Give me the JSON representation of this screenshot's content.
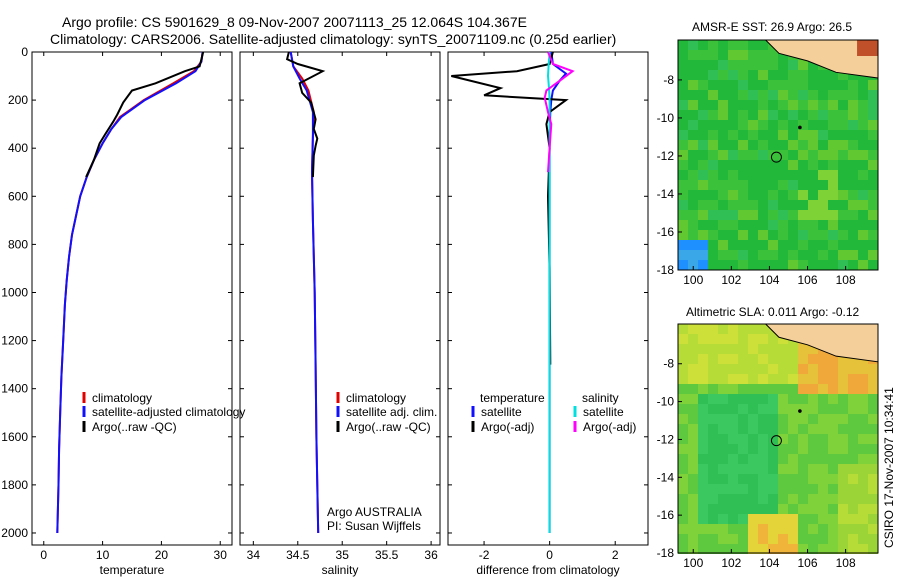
{
  "header": {
    "title_line1": "Argo profile: CS 5901629_8 09-Nov-2007 20071113_25 12.064S 104.367E",
    "title_line2": "Climatology: CARS2006. Satellite-adjusted climatology: synTS_20071109.nc (0.25d earlier)"
  },
  "colors": {
    "climatology": "#e00000",
    "satellite": "#1010ff",
    "argo": "#000000",
    "sat_salinity": "#00e0e0",
    "argo_adj_salinity": "#ff00ff"
  },
  "chart_data": [
    {
      "id": "temperature",
      "type": "line",
      "xlabel": "temperature",
      "xlim": [
        -2,
        32
      ],
      "ylim": [
        0,
        2050
      ],
      "xticks": [
        0,
        10,
        20,
        30
      ],
      "yticks": [
        0,
        200,
        400,
        600,
        800,
        1000,
        1200,
        1400,
        1600,
        1800,
        2000
      ],
      "y_reversed": true,
      "legend": [
        "climatology",
        "satellite-adjusted climatology",
        "Argo(..raw -QC)"
      ],
      "series": [
        {
          "name": "climatology",
          "color_key": "climatology",
          "x": [
            27,
            26.8,
            25.5,
            22,
            17,
            13,
            11.5,
            10,
            8.5,
            7.3,
            6.2,
            5.5,
            4.8,
            4.3,
            3.9,
            3.6,
            3.3,
            3.0,
            2.8,
            2.6,
            2.5,
            2.4,
            2.3
          ],
          "y": [
            0,
            40,
            80,
            130,
            200,
            270,
            320,
            380,
            450,
            520,
            600,
            680,
            760,
            850,
            950,
            1050,
            1200,
            1350,
            1500,
            1650,
            1800,
            1900,
            2000
          ]
        },
        {
          "name": "satellite-adjusted climatology",
          "color_key": "satellite",
          "x": [
            27,
            26.8,
            25.8,
            22.5,
            17.2,
            13.2,
            11.5,
            10,
            8.5,
            7.3,
            6.2,
            5.5,
            4.8,
            4.3,
            3.9,
            3.6,
            3.3,
            3.0,
            2.8,
            2.6,
            2.5,
            2.4,
            2.3
          ],
          "y": [
            0,
            40,
            80,
            130,
            200,
            270,
            320,
            380,
            450,
            520,
            600,
            680,
            760,
            850,
            950,
            1050,
            1200,
            1350,
            1500,
            1650,
            1800,
            1900,
            2000
          ]
        },
        {
          "name": "Argo(..raw -QC)",
          "color_key": "argo",
          "x": [
            27.1,
            26.8,
            26.5,
            24,
            19,
            15,
            13.5,
            12.5,
            11.8,
            10.5,
            9.5,
            8.5,
            7.2
          ],
          "y": [
            0,
            30,
            60,
            80,
            130,
            160,
            210,
            260,
            290,
            340,
            380,
            450,
            520
          ]
        }
      ]
    },
    {
      "id": "salinity",
      "type": "line",
      "xlabel": "salinity",
      "xlim": [
        33.85,
        36.1
      ],
      "ylim": [
        0,
        2050
      ],
      "xticks": [
        34,
        34.5,
        35,
        35.5,
        36
      ],
      "y_reversed": true,
      "legend": [
        "climatology",
        "satellite adj. clim.",
        "Argo(..raw -QC)"
      ],
      "annotation": [
        "Argo AUSTRALIA",
        "PI: Susan Wijffels"
      ],
      "series": [
        {
          "name": "climatology",
          "color_key": "climatology",
          "x": [
            34.42,
            34.45,
            34.55,
            34.62,
            34.68,
            34.67,
            34.66,
            34.67,
            34.69,
            34.7,
            34.71,
            34.72,
            34.73
          ],
          "y": [
            0,
            60,
            110,
            160,
            250,
            350,
            500,
            700,
            1000,
            1300,
            1600,
            1800,
            2000
          ]
        },
        {
          "name": "satellite adj. clim.",
          "color_key": "satellite",
          "x": [
            34.42,
            34.45,
            34.52,
            34.6,
            34.67,
            34.67,
            34.66,
            34.67,
            34.69,
            34.7,
            34.71,
            34.72,
            34.73
          ],
          "y": [
            0,
            60,
            110,
            160,
            250,
            350,
            500,
            700,
            1000,
            1300,
            1600,
            1800,
            2000
          ]
        },
        {
          "name": "Argo(..raw -QC)",
          "color_key": "argo",
          "x": [
            34.4,
            34.38,
            34.5,
            34.78,
            34.52,
            34.55,
            34.65,
            34.7,
            34.68,
            34.72,
            34.7,
            34.68,
            34.67
          ],
          "y": [
            0,
            30,
            50,
            80,
            130,
            170,
            210,
            280,
            320,
            360,
            390,
            430,
            520
          ]
        }
      ]
    },
    {
      "id": "difference",
      "type": "line",
      "xlabel": "difference from climatology",
      "xlim": [
        -3.1,
        3.0
      ],
      "ylim": [
        0,
        2050
      ],
      "xticks": [
        -2,
        0,
        2
      ],
      "y_reversed": true,
      "legend_left_title": "temperature",
      "legend_left": [
        "satellite",
        "Argo(-adj)"
      ],
      "legend_right_title": "salinity",
      "legend_right": [
        "satellite",
        "Argo(-adj)"
      ],
      "series": [
        {
          "name": "temperature satellite",
          "color_key": "satellite",
          "x": [
            0.05,
            0.1,
            0.5,
            0.3,
            0.1,
            0.05,
            0.02,
            0,
            0,
            0,
            0,
            0,
            0
          ],
          "y": [
            0,
            50,
            90,
            120,
            160,
            200,
            250,
            350,
            600,
            900,
            1300,
            1700,
            2000
          ]
        },
        {
          "name": "temperature Argo(-adj)",
          "color_key": "argo",
          "x": [
            0.1,
            0.0,
            -1.0,
            -3.0,
            -1.5,
            -2.0,
            0.5,
            0.0,
            -0.1,
            0.0,
            -0.05,
            0.0,
            0.02
          ],
          "y": [
            0,
            50,
            80,
            100,
            150,
            180,
            200,
            250,
            300,
            400,
            600,
            900,
            1300
          ]
        },
        {
          "name": "salinity satellite",
          "color_key": "sat_salinity",
          "x": [
            0.0,
            -0.03,
            -0.05,
            -0.02,
            0.0,
            0.0,
            0.0,
            0.0,
            0.0
          ],
          "y": [
            0,
            50,
            100,
            150,
            200,
            400,
            800,
            1400,
            2000
          ]
        },
        {
          "name": "salinity Argo(-adj)",
          "color_key": "argo_adj_salinity",
          "x": [
            -0.05,
            0.1,
            0.7,
            0.3,
            -0.1,
            -0.15,
            -0.05,
            0.05,
            0.0,
            -0.05
          ],
          "y": [
            0,
            50,
            80,
            120,
            160,
            190,
            250,
            300,
            400,
            500
          ]
        }
      ]
    }
  ],
  "maps": [
    {
      "id": "sst",
      "title": "AMSR-E SST: 26.9 Argo: 26.5",
      "xlim": [
        99.2,
        109.7
      ],
      "ylim": [
        -18,
        -5.9
      ],
      "xticks": [
        100,
        102,
        104,
        106,
        108
      ],
      "yticks": [
        -8,
        -10,
        -12,
        -14,
        -16,
        -18
      ],
      "float_position": {
        "lon": 104.367,
        "lat": -12.064
      }
    },
    {
      "id": "sla",
      "title": "Altimetric SLA: 0.011 Argo: -0.12",
      "xlim": [
        99.2,
        109.7
      ],
      "ylim": [
        -18,
        -5.9
      ],
      "xticks": [
        100,
        102,
        104,
        106,
        108
      ],
      "yticks": [
        -8,
        -10,
        -12,
        -14,
        -16,
        -18
      ],
      "float_position": {
        "lon": 104.367,
        "lat": -12.064
      }
    }
  ],
  "credit": "CSIRO 17-Nov-2007 10:34:41"
}
